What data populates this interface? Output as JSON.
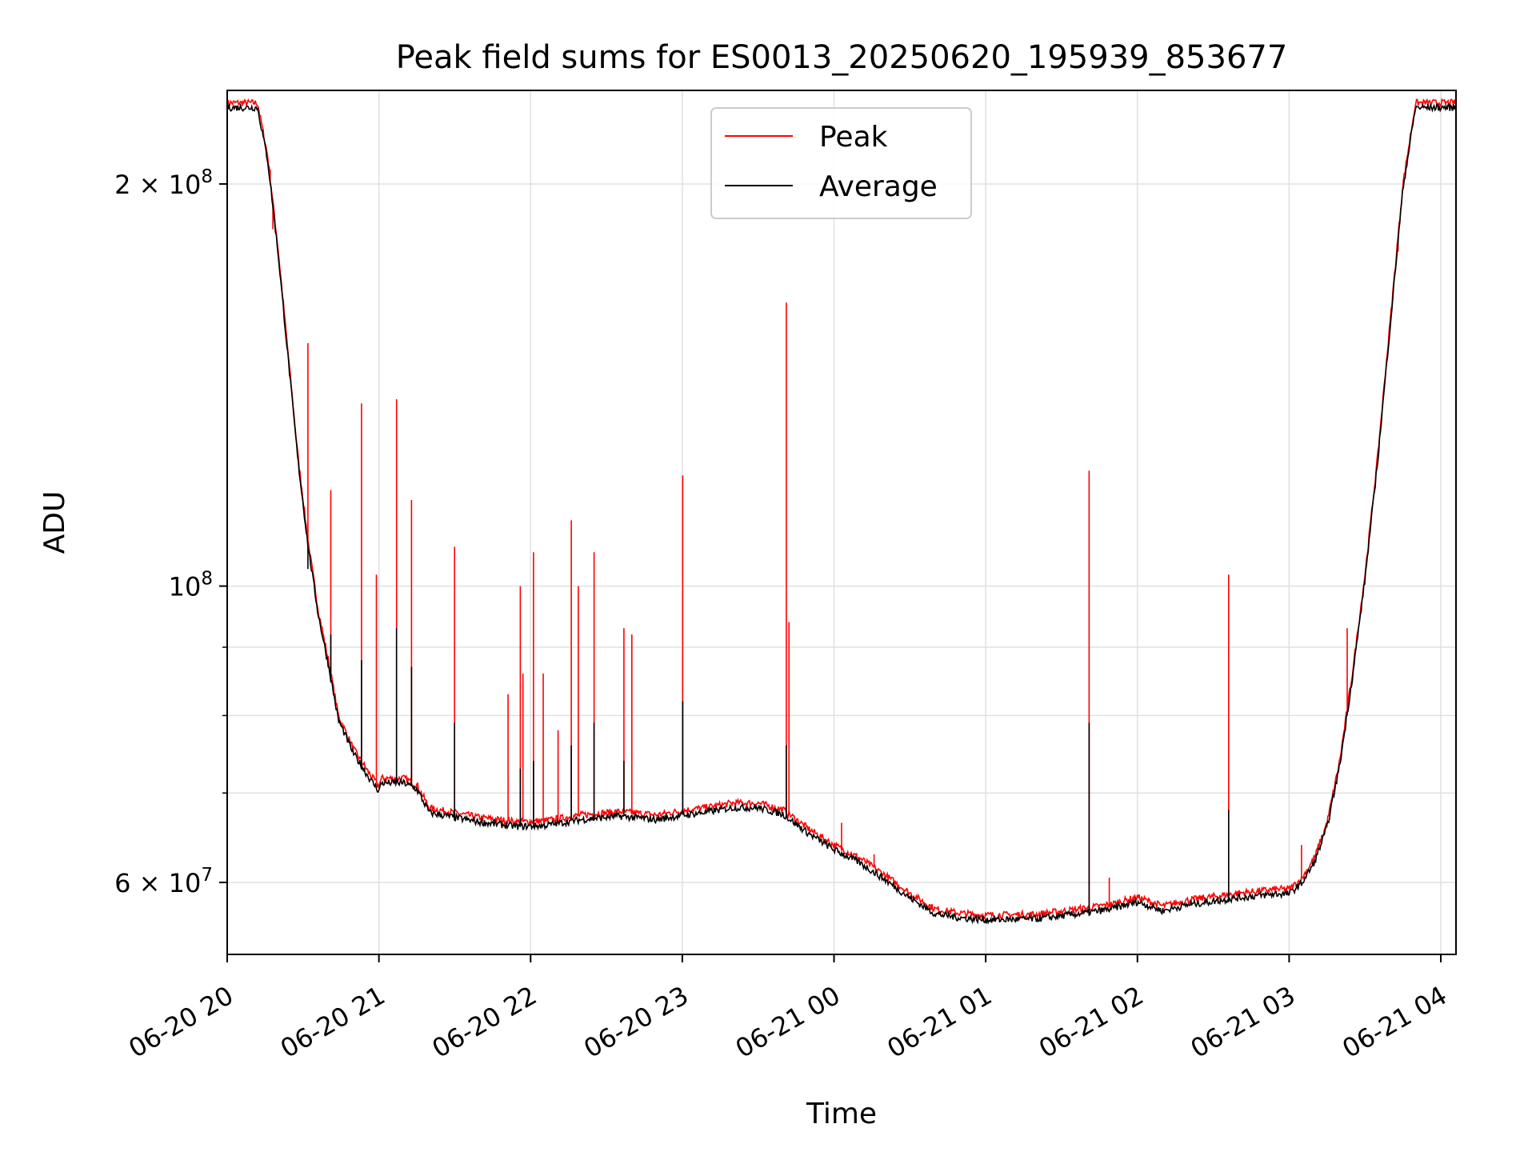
{
  "chart_data": {
    "type": "line",
    "title": "Peak field sums for ES0013_20250620_195939_853677",
    "xlabel": "Time",
    "ylabel": "ADU",
    "y_scale": "log",
    "xlim": [
      "2025-06-20T20:00",
      "2025-06-21T04:06"
    ],
    "ylim": [
      53000000,
      235000000
    ],
    "x_ticks": [
      "06-20 20",
      "06-20 21",
      "06-20 22",
      "06-20 23",
      "06-21 00",
      "06-21 01",
      "06-21 02",
      "06-21 03",
      "06-21 04"
    ],
    "y_major_ticks": [
      {
        "value": 60000000,
        "mantissa": "6",
        "exponent": "7",
        "label": "6 × 10^7"
      },
      {
        "value": 100000000,
        "mantissa": "",
        "exponent": "8",
        "label": "10^8"
      },
      {
        "value": 200000000,
        "mantissa": "2",
        "exponent": "8",
        "label": "2 × 10^8"
      }
    ],
    "y_minor_ticks": [
      70000000,
      80000000,
      90000000
    ],
    "grid": true,
    "legend_position": "upper-center",
    "series": [
      {
        "name": "Peak",
        "color": "#ff0000",
        "baseline": [
          [
            "2025-06-20T20:00",
            230000000
          ],
          [
            "2025-06-20T20:12",
            230000000
          ],
          [
            "2025-06-20T20:16",
            210000000
          ],
          [
            "2025-06-20T20:20",
            180000000
          ],
          [
            "2025-06-20T20:24",
            150000000
          ],
          [
            "2025-06-20T20:28",
            125000000
          ],
          [
            "2025-06-20T20:32",
            108000000
          ],
          [
            "2025-06-20T20:36",
            96000000
          ],
          [
            "2025-06-20T20:40",
            88000000
          ],
          [
            "2025-06-20T20:44",
            80000000
          ],
          [
            "2025-06-20T20:50",
            75500000
          ],
          [
            "2025-06-20T20:56",
            72500000
          ],
          [
            "2025-06-20T21:00",
            70800000
          ],
          [
            "2025-06-20T21:01",
            71800000
          ],
          [
            "2025-06-20T21:10",
            71800000
          ],
          [
            "2025-06-20T21:15",
            71000000
          ],
          [
            "2025-06-20T21:20",
            68200000
          ],
          [
            "2025-06-20T21:40",
            67100000
          ],
          [
            "2025-06-20T21:55",
            66600000
          ],
          [
            "2025-06-20T22:05",
            66700000
          ],
          [
            "2025-06-20T22:20",
            67400000
          ],
          [
            "2025-06-20T22:35",
            67800000
          ],
          [
            "2025-06-20T22:50",
            67400000
          ],
          [
            "2025-06-20T23:00",
            67900000
          ],
          [
            "2025-06-20T23:10",
            68300000
          ],
          [
            "2025-06-20T23:20",
            68800000
          ],
          [
            "2025-06-20T23:30",
            68800000
          ],
          [
            "2025-06-20T23:40",
            68000000
          ],
          [
            "2025-06-20T23:50",
            65800000
          ],
          [
            "2025-06-21T00:00",
            64000000
          ],
          [
            "2025-06-21T00:10",
            62600000
          ],
          [
            "2025-06-21T00:20",
            60800000
          ],
          [
            "2025-06-21T00:30",
            58900000
          ],
          [
            "2025-06-21T00:40",
            57300000
          ],
          [
            "2025-06-21T00:50",
            56900000
          ],
          [
            "2025-06-21T01:00",
            56700000
          ],
          [
            "2025-06-21T01:20",
            56800000
          ],
          [
            "2025-06-21T01:40",
            57400000
          ],
          [
            "2025-06-21T01:50",
            57800000
          ],
          [
            "2025-06-21T02:00",
            58500000
          ],
          [
            "2025-06-21T02:10",
            57600000
          ],
          [
            "2025-06-21T02:20",
            58200000
          ],
          [
            "2025-06-21T02:40",
            58900000
          ],
          [
            "2025-06-21T02:55",
            59300000
          ],
          [
            "2025-06-21T03:00",
            59300000
          ],
          [
            "2025-06-21T03:05",
            60400000
          ],
          [
            "2025-06-21T03:10",
            62600000
          ],
          [
            "2025-06-21T03:15",
            66500000
          ],
          [
            "2025-06-21T03:20",
            74000000
          ],
          [
            "2025-06-21T03:25",
            86000000
          ],
          [
            "2025-06-21T03:30",
            102000000
          ],
          [
            "2025-06-21T03:35",
            125000000
          ],
          [
            "2025-06-21T03:40",
            158000000
          ],
          [
            "2025-06-21T03:45",
            200000000
          ],
          [
            "2025-06-21T03:50",
            230000000
          ],
          [
            "2025-06-21T04:06",
            230000000
          ]
        ],
        "spikes": [
          [
            "2025-06-20T20:17",
            205000000
          ],
          [
            "2025-06-20T20:18",
            185000000
          ],
          [
            "2025-06-20T20:22",
            165000000
          ],
          [
            "2025-06-20T20:32",
            152000000
          ],
          [
            "2025-06-20T20:41",
            118000000
          ],
          [
            "2025-06-20T20:53",
            137000000
          ],
          [
            "2025-06-20T20:59",
            102000000
          ],
          [
            "2025-06-20T21:07",
            138000000
          ],
          [
            "2025-06-20T21:13",
            116000000
          ],
          [
            "2025-06-20T21:30",
            107000000
          ],
          [
            "2025-06-20T21:51",
            83000000
          ],
          [
            "2025-06-20T21:56",
            100000000
          ],
          [
            "2025-06-20T21:57",
            86000000
          ],
          [
            "2025-06-20T22:01",
            106000000
          ],
          [
            "2025-06-20T22:05",
            86000000
          ],
          [
            "2025-06-20T22:11",
            78000000
          ],
          [
            "2025-06-20T22:16",
            112000000
          ],
          [
            "2025-06-20T22:19",
            100000000
          ],
          [
            "2025-06-20T22:25",
            106000000
          ],
          [
            "2025-06-20T22:37",
            93000000
          ],
          [
            "2025-06-20T22:40",
            92000000
          ],
          [
            "2025-06-20T23:00",
            121000000
          ],
          [
            "2025-06-20T23:41",
            163000000
          ],
          [
            "2025-06-20T23:42",
            94000000
          ],
          [
            "2025-06-21T00:03",
            66500000
          ],
          [
            "2025-06-21T00:16",
            63000000
          ],
          [
            "2025-06-21T01:41",
            122000000
          ],
          [
            "2025-06-21T01:49",
            60500000
          ],
          [
            "2025-06-21T02:36",
            102000000
          ],
          [
            "2025-06-21T03:05",
            64000000
          ],
          [
            "2025-06-21T03:23",
            93000000
          ],
          [
            "2025-06-21T03:43",
            178000000
          ]
        ]
      },
      {
        "name": "Average",
        "color": "#000000",
        "offset_factor": 0.992,
        "spikes": [
          [
            "2025-06-20T20:32",
            103000000
          ],
          [
            "2025-06-20T20:41",
            92000000
          ],
          [
            "2025-06-20T20:53",
            88000000
          ],
          [
            "2025-06-20T21:07",
            93000000
          ],
          [
            "2025-06-20T21:13",
            87000000
          ],
          [
            "2025-06-20T21:30",
            79000000
          ],
          [
            "2025-06-20T21:56",
            73000000
          ],
          [
            "2025-06-20T22:01",
            74000000
          ],
          [
            "2025-06-20T22:16",
            76000000
          ],
          [
            "2025-06-20T22:25",
            79000000
          ],
          [
            "2025-06-20T22:37",
            74000000
          ],
          [
            "2025-06-20T23:00",
            82000000
          ],
          [
            "2025-06-20T23:41",
            76000000
          ],
          [
            "2025-06-21T01:41",
            79000000
          ],
          [
            "2025-06-21T02:36",
            68000000
          ],
          [
            "2025-06-21T03:23",
            80000000
          ]
        ]
      }
    ]
  }
}
